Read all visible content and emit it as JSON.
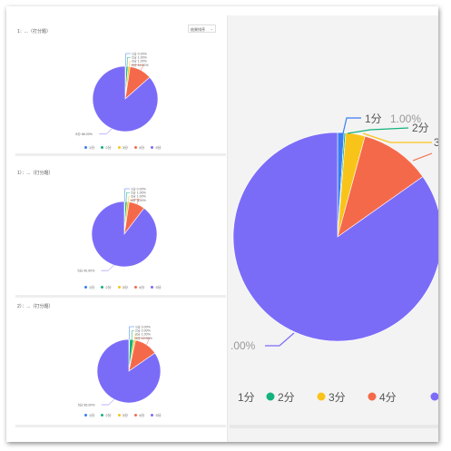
{
  "sort_select": {
    "value": "结果排序",
    "chevron": "chevron-down-icon"
  },
  "legend_labels": [
    "1分",
    "2分",
    "3分",
    "4分",
    "5分"
  ],
  "colors": {
    "s1": "#3a7cf3",
    "s2": "#13b37b",
    "s3": "#f9c41a",
    "s4": "#f5694b",
    "s5": "#7b6cf8"
  },
  "panels": [
    {
      "title": "1：...（打分题）",
      "slices": [
        {
          "label": "1分",
          "value": "0.00%"
        },
        {
          "label": "2分",
          "value": "1.00%"
        },
        {
          "label": "3分",
          "value": "1.00%"
        },
        {
          "label": "4分",
          "value": "11.00%"
        },
        {
          "label": "5分",
          "value": "86.00%"
        }
      ]
    },
    {
      "title": "1）：...（打分题）",
      "slices": [
        {
          "label": "1分",
          "value": "0.00%"
        },
        {
          "label": "2分",
          "value": "1.00%"
        },
        {
          "label": "3分",
          "value": "1.00%"
        },
        {
          "label": "4分",
          "value": "8.00%"
        },
        {
          "label": "5分",
          "value": "90.00%"
        }
      ]
    },
    {
      "title": "2）：...（打分题）",
      "slices": [
        {
          "label": "1分",
          "value": "0.00%"
        },
        {
          "label": "2分",
          "value": "2.00%"
        },
        {
          "label": "3分",
          "value": "1.00%"
        },
        {
          "label": "4分",
          "value": "12.00%"
        },
        {
          "label": "5分",
          "value": "85.00%"
        }
      ]
    }
  ],
  "zoom": {
    "callout_1": "1分",
    "callout_1_value": "1.00%",
    "callout_2": "2分",
    "callout_3": "3",
    "callout_5_value": ".00%",
    "legend": [
      "1分",
      "2分",
      "3分",
      "4分"
    ],
    "slices": [
      {
        "label": "1分",
        "value": 1
      },
      {
        "label": "2分",
        "value": 0
      },
      {
        "label": "3分",
        "value": 3
      },
      {
        "label": "4分",
        "value": 11
      },
      {
        "label": "5分",
        "value": 85
      }
    ]
  }
}
